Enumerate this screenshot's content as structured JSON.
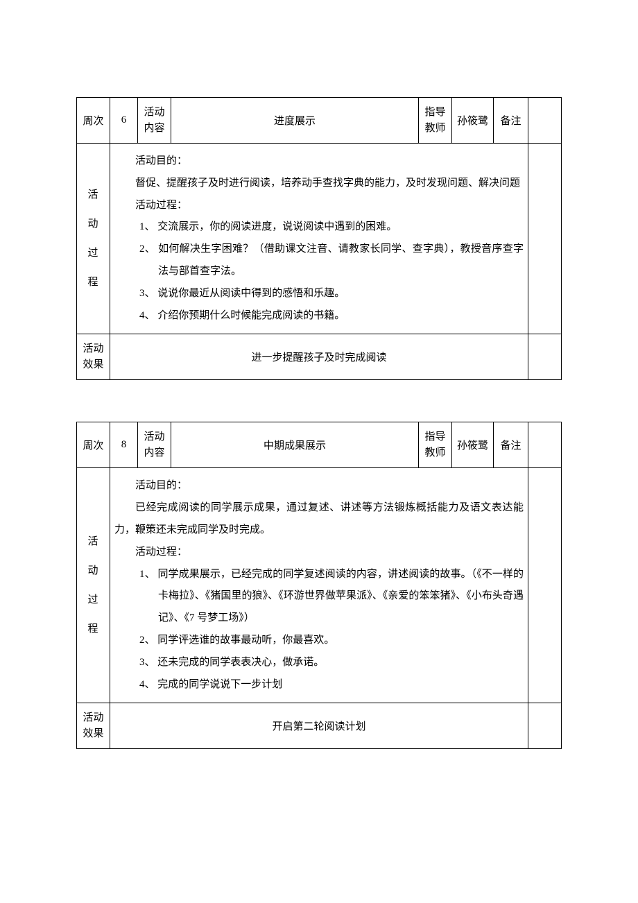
{
  "colors": {
    "text": "#000000",
    "border": "#000000",
    "background": "#ffffff"
  },
  "typography": {
    "body_font": "SimSun",
    "body_size_pt": 12,
    "process_label_size_pt": 16
  },
  "tables": [
    {
      "header": {
        "week_label": "周次",
        "week_number": "6",
        "activity_content_label": "活动内容",
        "title": "进度展示",
        "teacher_label": "指导教师",
        "teacher_name": "孙筱鹭",
        "note_label": "备注"
      },
      "process_label": "活动过程",
      "process": {
        "purpose_heading": "活动目的：",
        "purpose_text": "督促、提醒孩子及时进行阅读，培养动手查找字典的能力，及时发现问题、解决问题",
        "steps_heading": "活动过程：",
        "steps": [
          "1、 交流展示，你的阅读进度，说说阅读中遇到的困难。",
          "2、 如何解决生字困难？（借助课文注音、请教家长同学、查字典），教授音序查字法与部首查字法。",
          "3、 说说你最近从阅读中得到的感悟和乐趣。",
          "4、 介绍你预期什么时候能完成阅读的书籍。"
        ]
      },
      "effect_label": "活动效果",
      "effect_text": "进一步提醒孩子及时完成阅读"
    },
    {
      "header": {
        "week_label": "周次",
        "week_number": "8",
        "activity_content_label": "活动内容",
        "title": "中期成果展示",
        "teacher_label": "指导教师",
        "teacher_name": "孙筱鹭",
        "note_label": "备注"
      },
      "process_label": "活动过程",
      "process": {
        "purpose_heading": "活动目的：",
        "purpose_text": "已经完成阅读的同学展示成果，通过复述、讲述等方法锻炼概括能力及语文表达能力，鞭策还未完成同学及时完成。",
        "steps_heading": "活动过程：",
        "steps": [
          "1、 同学成果展示，已经完成的同学复述阅读的内容，讲述阅读的故事。（《不一样的卡梅拉》、《猪国里的狼》、《环游世界做苹果派》、《亲爱的笨笨猪》、《小布头奇遇记》、《7 号梦工场》）",
          "2、 同学评选谁的故事最动听，你最喜欢。",
          "3、 还未完成的同学表表决心，做承诺。",
          "4、 完成的同学说说下一步计划"
        ]
      },
      "effect_label": "活动效果",
      "effect_text": "开启第二轮阅读计划"
    }
  ]
}
